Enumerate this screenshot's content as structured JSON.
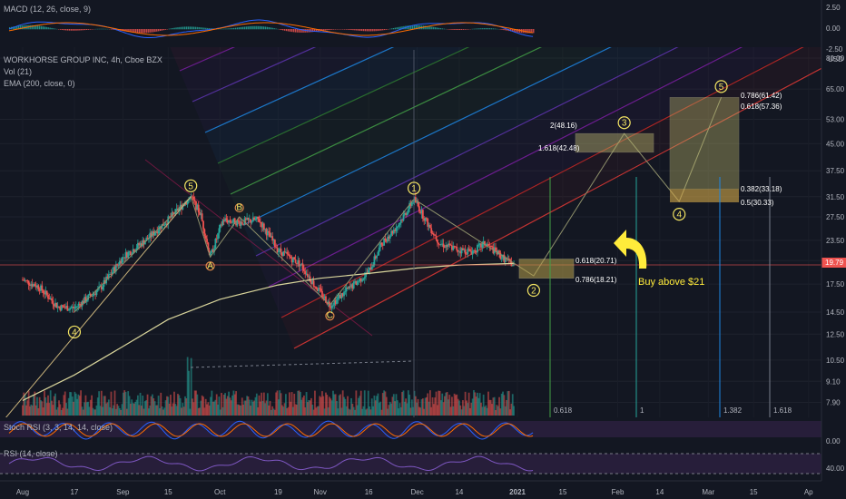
{
  "macd": {
    "legend": "MACD (12, 26, close, 9)",
    "axis": [
      "2.50",
      "0.00",
      "-2.50"
    ]
  },
  "main": {
    "title": "WORKHORSE GROUP INC, 4h, Cboe BZX",
    "legend_vol": "Vol (21)",
    "legend_ema": "EMA (200, close, 0)",
    "currency": "USD",
    "price_axis": [
      "80.00",
      "65.00",
      "53.00",
      "45.00",
      "37.50",
      "31.50",
      "27.50",
      "23.50",
      "20.50",
      "17.50",
      "14.50",
      "12.50",
      "10.50",
      "9.10",
      "7.90"
    ],
    "last_price": "19.79",
    "annotation": "Buy above $21",
    "fib_labels": {
      "f2": "2(48.16)",
      "f1618": "1.618(42.48)",
      "f786a": "0.786(61.42)",
      "f618a": "0.618(57.36)",
      "f382": "0.382(33.18)",
      "f5": "0.5(30.33)",
      "f618b": "0.618(20.71)",
      "f786b": "0.786(18.21)"
    },
    "time_fib": [
      "0.618",
      "1",
      "1.382",
      "1.618"
    ],
    "colors": {
      "up": "#26a69a",
      "down": "#ef5350",
      "ema": "#d8d49b",
      "wave": "#f5e663",
      "arrow": "#ffeb3b"
    }
  },
  "stoch": {
    "legend": "Stoch RSI (3, 3, 14, 14, close)",
    "axis": [
      "0.00"
    ]
  },
  "rsi": {
    "legend": "RSI (14, close)",
    "axis": [
      "40.00"
    ]
  },
  "time_axis": [
    "Aug",
    "17",
    "Sep",
    "15",
    "Oct",
    "19",
    "Nov",
    "16",
    "Dec",
    "14",
    "2021",
    "15",
    "Feb",
    "14",
    "Mar",
    "15",
    "Ap"
  ],
  "chart_data": {
    "type": "candlestick",
    "symbol": "WORKHORSE GROUP INC",
    "interval": "4h",
    "exchange": "Cboe BZX",
    "y_scale": "log",
    "ylim": [
      7.5,
      82
    ],
    "last_price": 19.79,
    "price_path": [
      [
        "2020-08-01",
        18.0
      ],
      [
        "2020-08-06",
        17.2
      ],
      [
        "2020-08-12",
        15.0
      ],
      [
        "2020-08-17",
        14.9
      ],
      [
        "2020-08-25",
        17.0
      ],
      [
        "2020-09-01",
        21.0
      ],
      [
        "2020-09-08",
        23.5
      ],
      [
        "2020-09-15",
        27.0
      ],
      [
        "2020-09-22",
        31.5
      ],
      [
        "2020-09-25",
        28.0
      ],
      [
        "2020-09-28",
        21.0
      ],
      [
        "2020-10-02",
        27.0
      ],
      [
        "2020-10-07",
        26.5
      ],
      [
        "2020-10-13",
        27.0
      ],
      [
        "2020-10-19",
        22.0
      ],
      [
        "2020-10-26",
        20.0
      ],
      [
        "2020-10-30",
        17.5
      ],
      [
        "2020-11-04",
        15.2
      ],
      [
        "2020-11-10",
        17.0
      ],
      [
        "2020-11-16",
        19.0
      ],
      [
        "2020-11-20",
        23.0
      ],
      [
        "2020-11-25",
        26.0
      ],
      [
        "2020-11-30",
        31.0
      ],
      [
        "2020-12-04",
        26.5
      ],
      [
        "2020-12-08",
        23.0
      ],
      [
        "2020-12-14",
        22.0
      ],
      [
        "2020-12-18",
        21.8
      ],
      [
        "2020-12-22",
        23.0
      ],
      [
        "2020-12-28",
        20.7
      ],
      [
        "2020-12-31",
        19.79
      ]
    ],
    "ema200": [
      [
        "2020-08-01",
        8.0
      ],
      [
        "2020-08-17",
        9.5
      ],
      [
        "2020-09-01",
        11.5
      ],
      [
        "2020-09-15",
        13.8
      ],
      [
        "2020-10-01",
        15.8
      ],
      [
        "2020-10-19",
        17.4
      ],
      [
        "2020-11-01",
        18.2
      ],
      [
        "2020-11-16",
        18.8
      ],
      [
        "2020-12-01",
        19.5
      ],
      [
        "2020-12-14",
        19.9
      ],
      [
        "2020-12-31",
        20.1
      ]
    ],
    "elliott_waves": [
      {
        "label": "4",
        "date": "2020-08-17",
        "price": 14.5
      },
      {
        "label": "5",
        "date": "2020-09-22",
        "price": 31.5
      },
      {
        "label": "A",
        "date": "2020-09-28",
        "price": 21.0
      },
      {
        "label": "B",
        "date": "2020-10-07",
        "price": 27.5
      },
      {
        "label": "C",
        "date": "2020-11-04",
        "price": 15.2
      },
      {
        "label": "1",
        "date": "2020-11-30",
        "price": 31.0
      },
      {
        "label": "2",
        "date": "2021-01-06",
        "price": 18.5
      },
      {
        "label": "3",
        "date": "2021-02-03",
        "price": 48.16
      },
      {
        "label": "4",
        "date": "2021-02-20",
        "price": 30.5
      },
      {
        "label": "5",
        "date": "2021-03-05",
        "price": 61.42
      }
    ],
    "fib_levels": [
      {
        "label": "2",
        "price": 48.16
      },
      {
        "label": "1.618",
        "price": 42.48
      },
      {
        "label": "0.786",
        "price": 61.42
      },
      {
        "label": "0.618",
        "price": 57.36
      },
      {
        "label": "0.382",
        "price": 33.18
      },
      {
        "label": "0.5",
        "price": 30.33
      },
      {
        "label": "0.618",
        "price": 20.71
      },
      {
        "label": "0.786",
        "price": 18.21
      }
    ]
  }
}
